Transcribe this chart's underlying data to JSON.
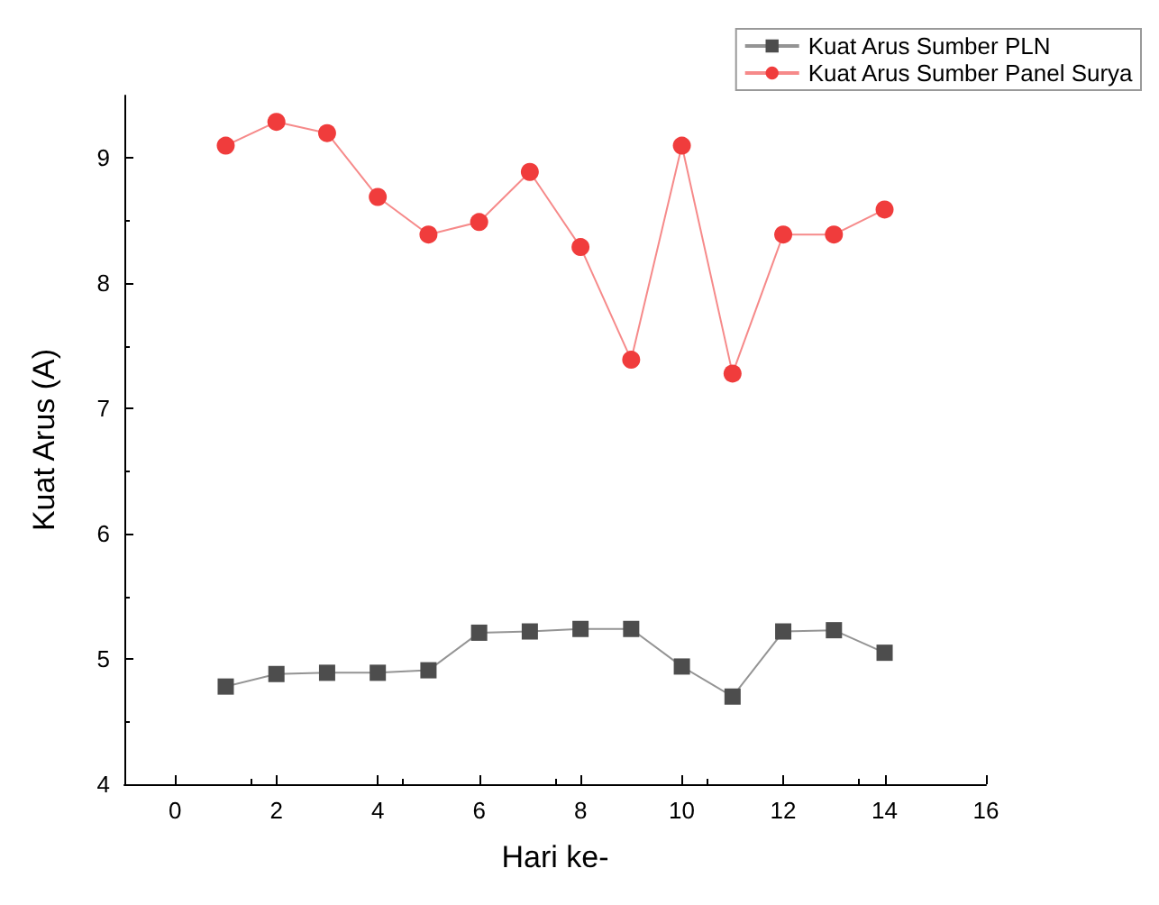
{
  "chart_data": {
    "type": "line",
    "xlabel": "Hari ke-",
    "ylabel": "Kuat Arus (A)",
    "xlim": [
      -1,
      16
    ],
    "xticks": [
      0,
      2,
      4,
      6,
      8,
      10,
      12,
      14,
      16
    ],
    "ylim": [
      4,
      9.5
    ],
    "yticks": [
      4,
      5,
      6,
      7,
      8,
      9
    ],
    "x": [
      1,
      2,
      3,
      4,
      5,
      6,
      7,
      8,
      9,
      10,
      11,
      12,
      13,
      14
    ],
    "series": [
      {
        "name": "Kuat Arus Sumber PLN",
        "color": "#4d4d4d",
        "marker": "square",
        "values": [
          4.78,
          4.88,
          4.89,
          4.89,
          4.91,
          5.21,
          5.22,
          5.24,
          5.24,
          4.94,
          4.7,
          5.22,
          5.23,
          5.05
        ]
      },
      {
        "name": "Kuat Arus Sumber Panel Surya",
        "color": "#f03c3c",
        "marker": "circle",
        "values": [
          9.1,
          9.29,
          9.2,
          8.69,
          8.39,
          8.49,
          8.89,
          8.29,
          7.39,
          9.1,
          7.28,
          8.39,
          8.39,
          8.59
        ]
      }
    ],
    "legend": "top right",
    "grid": false
  }
}
